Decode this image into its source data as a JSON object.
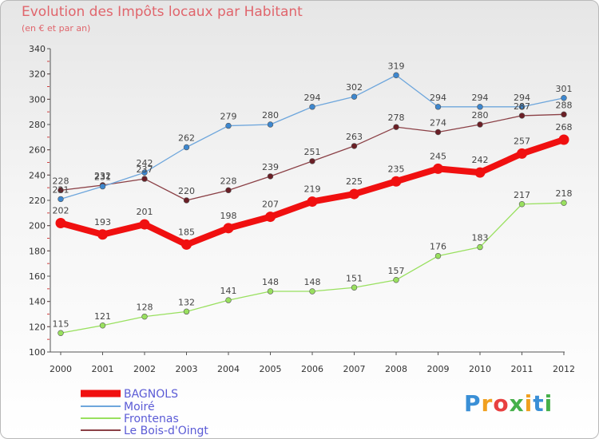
{
  "chart_data": {
    "type": "line",
    "title": "Evolution des Impôts locaux par Habitant",
    "subtitle": "(en € et par an)",
    "x": [
      "2000",
      "2001",
      "2002",
      "2003",
      "2004",
      "2005",
      "2006",
      "2007",
      "2008",
      "2009",
      "2010",
      "2011",
      "2012"
    ],
    "ylim": [
      100,
      340
    ],
    "yticks": [
      100,
      120,
      140,
      160,
      180,
      200,
      220,
      240,
      260,
      280,
      300,
      320,
      340
    ],
    "xlabel": "",
    "ylabel": "",
    "grid": false,
    "legend_position": "bottom-left",
    "series": [
      {
        "name": "Frontenas",
        "color": "#99e05f",
        "point_color": "#99e05f",
        "weight": "thin",
        "values": [
          115,
          121,
          128,
          132,
          141,
          148,
          148,
          151,
          157,
          176,
          183,
          217,
          218
        ]
      },
      {
        "name": "Le Bois-d'Oingt",
        "color": "#8b4046",
        "point_color": "#6b1f26",
        "weight": "thin",
        "values": [
          228,
          232,
          237,
          220,
          228,
          239,
          251,
          263,
          278,
          274,
          280,
          287,
          288
        ]
      },
      {
        "name": "Moiré",
        "color": "#6ea6dc",
        "point_color": "#3d87cf",
        "weight": "thin",
        "values": [
          221,
          231,
          242,
          262,
          279,
          280,
          294,
          302,
          319,
          294,
          294,
          294,
          301
        ]
      },
      {
        "name": "BAGNOLS",
        "color": "#f01010",
        "point_color": "#f01010",
        "weight": "thick",
        "values": [
          202,
          193,
          201,
          185,
          198,
          207,
          219,
          225,
          235,
          245,
          242,
          257,
          268
        ]
      }
    ],
    "legend": [
      "BAGNOLS",
      "Moiré",
      "Frontenas",
      "Le Bois-d'Oingt"
    ]
  },
  "brand": {
    "letters": [
      "P",
      "r",
      "o",
      "x",
      "i",
      "t",
      "i"
    ],
    "colors": [
      "#3a8fd6",
      "#f0a020",
      "#e84040",
      "#46b04a",
      "#f0a020",
      "#3a8fd6",
      "#46b04a"
    ]
  }
}
